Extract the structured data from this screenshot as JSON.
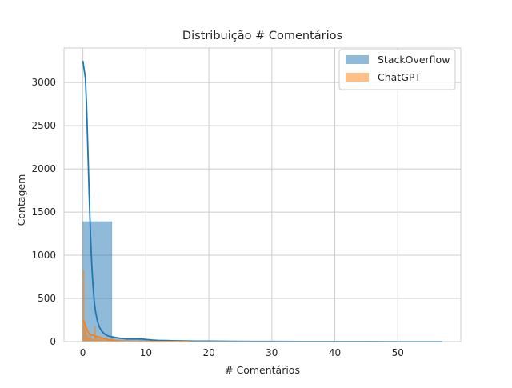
{
  "chart_data": {
    "type": "histogram",
    "title": "Distribuição # Comentários",
    "xlabel": "# Comentários",
    "ylabel": "Contagem",
    "xlim": [
      -3,
      60
    ],
    "ylim": [
      0,
      3400
    ],
    "xticks": [
      0,
      10,
      20,
      30,
      40,
      50
    ],
    "yticks": [
      0,
      500,
      1000,
      1500,
      2000,
      2500,
      3000
    ],
    "grid": true,
    "legend_position": "top-right",
    "series": [
      {
        "name": "StackOverflow",
        "color": "#1f77b4",
        "bins": [
          {
            "x0": 0,
            "x1": 4.6,
            "count": 1390
          },
          {
            "x0": 4.6,
            "x1": 9.2,
            "count": 40
          },
          {
            "x0": 9.2,
            "x1": 13.8,
            "count": 18
          },
          {
            "x0": 13.8,
            "x1": 18.4,
            "count": 6
          },
          {
            "x0": 18.4,
            "x1": 23.0,
            "count": 3
          },
          {
            "x0": 23.0,
            "x1": 27.6,
            "count": 2
          },
          {
            "x0": 27.6,
            "x1": 32.2,
            "count": 1
          },
          {
            "x0": 32.2,
            "x1": 36.8,
            "count": 1
          },
          {
            "x0": 36.8,
            "x1": 41.4,
            "count": 0
          },
          {
            "x0": 41.4,
            "x1": 46.0,
            "count": 1
          },
          {
            "x0": 46.0,
            "x1": 50.6,
            "count": 0
          },
          {
            "x0": 50.6,
            "x1": 55.2,
            "count": 0
          },
          {
            "x0": 55.2,
            "x1": 57.0,
            "count": 1
          }
        ],
        "kde": [
          [
            0,
            3250
          ],
          [
            0.2,
            3150
          ],
          [
            0.4,
            3050
          ],
          [
            0.6,
            2700
          ],
          [
            0.8,
            2200
          ],
          [
            1.0,
            1700
          ],
          [
            1.2,
            1250
          ],
          [
            1.4,
            900
          ],
          [
            1.6,
            650
          ],
          [
            1.8,
            470
          ],
          [
            2.0,
            350
          ],
          [
            2.3,
            240
          ],
          [
            2.6,
            170
          ],
          [
            3.0,
            120
          ],
          [
            3.5,
            85
          ],
          [
            4.0,
            65
          ],
          [
            5.0,
            50
          ],
          [
            6.0,
            38
          ],
          [
            7.0,
            30
          ],
          [
            8.0,
            30
          ],
          [
            9.0,
            32
          ],
          [
            10.0,
            25
          ],
          [
            11.0,
            18
          ],
          [
            12.0,
            14
          ],
          [
            14.0,
            10
          ],
          [
            16.0,
            8
          ],
          [
            18.0,
            6
          ],
          [
            20.0,
            5
          ],
          [
            22.0,
            4
          ],
          [
            24.0,
            3
          ],
          [
            27.0,
            2
          ],
          [
            30.0,
            2
          ],
          [
            35.0,
            1
          ],
          [
            40.0,
            1
          ],
          [
            45.0,
            1
          ],
          [
            50.0,
            0
          ],
          [
            57.0,
            0
          ]
        ]
      },
      {
        "name": "ChatGPT",
        "color": "#ff7f0e",
        "bins": [
          {
            "x0": 0.0,
            "x1": 0.2,
            "count": 820
          },
          {
            "x0": 0.2,
            "x1": 0.4,
            "count": 240
          },
          {
            "x0": 0.4,
            "x1": 0.6,
            "count": 120
          },
          {
            "x0": 0.6,
            "x1": 0.8,
            "count": 70
          },
          {
            "x0": 0.8,
            "x1": 1.0,
            "count": 40
          },
          {
            "x0": 1.0,
            "x1": 1.2,
            "count": 90
          },
          {
            "x0": 1.2,
            "x1": 1.4,
            "count": 50
          },
          {
            "x0": 1.4,
            "x1": 1.6,
            "count": 30
          },
          {
            "x0": 1.6,
            "x1": 1.8,
            "count": 20
          },
          {
            "x0": 1.8,
            "x1": 2.0,
            "count": 170
          },
          {
            "x0": 2.0,
            "x1": 2.2,
            "count": 60
          },
          {
            "x0": 2.2,
            "x1": 2.6,
            "count": 30
          },
          {
            "x0": 2.6,
            "x1": 3.0,
            "count": 30
          },
          {
            "x0": 3.0,
            "x1": 3.4,
            "count": 25
          },
          {
            "x0": 3.4,
            "x1": 4.0,
            "count": 15
          },
          {
            "x0": 4.0,
            "x1": 5.0,
            "count": 10
          },
          {
            "x0": 5.0,
            "x1": 6.0,
            "count": 6
          },
          {
            "x0": 6.0,
            "x1": 8.0,
            "count": 4
          },
          {
            "x0": 8.0,
            "x1": 12.0,
            "count": 2
          },
          {
            "x0": 12.0,
            "x1": 17.0,
            "count": 1
          }
        ],
        "kde": [
          [
            0,
            240
          ],
          [
            0.2,
            220
          ],
          [
            0.4,
            190
          ],
          [
            0.6,
            150
          ],
          [
            0.8,
            115
          ],
          [
            1.0,
            90
          ],
          [
            1.2,
            80
          ],
          [
            1.5,
            75
          ],
          [
            1.8,
            70
          ],
          [
            2.1,
            62
          ],
          [
            2.5,
            52
          ],
          [
            3.0,
            42
          ],
          [
            3.5,
            32
          ],
          [
            4.0,
            22
          ],
          [
            5.0,
            14
          ],
          [
            6.0,
            8
          ],
          [
            7.0,
            5
          ],
          [
            8.0,
            3
          ],
          [
            10.0,
            2
          ],
          [
            12.0,
            1
          ],
          [
            15.0,
            1
          ],
          [
            17.0,
            0
          ]
        ]
      }
    ]
  }
}
